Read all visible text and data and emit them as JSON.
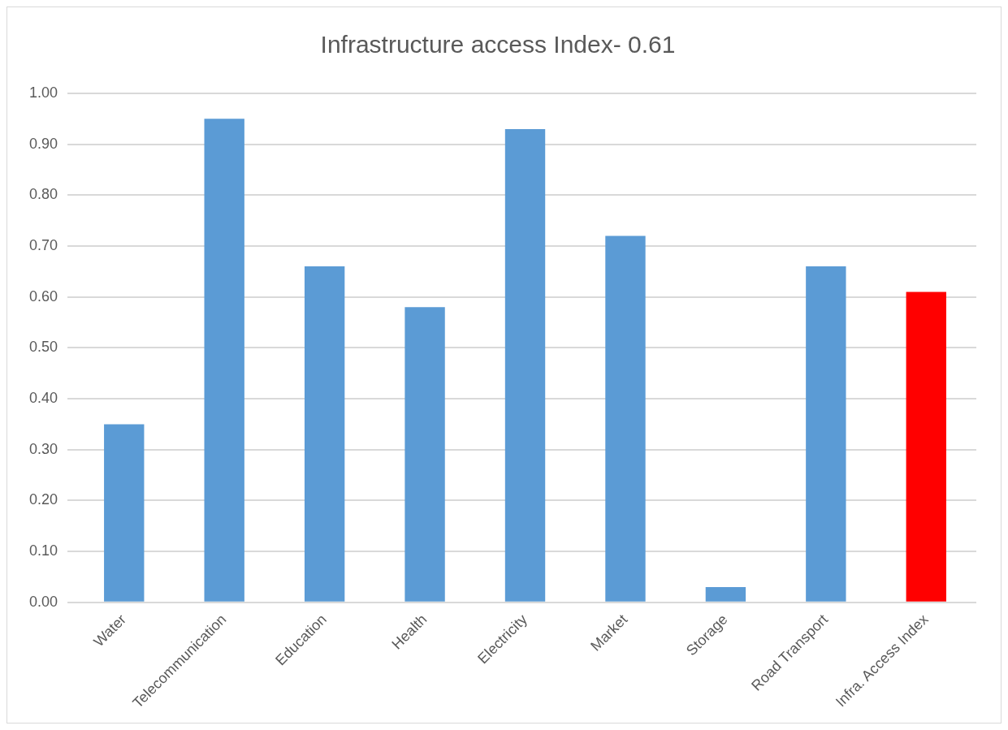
{
  "chart_data": {
    "type": "bar",
    "title": "Infrastructure access Index- 0.61",
    "categories": [
      "Water",
      "Telecommunication",
      "Education",
      "Health",
      "Electricity",
      "Market",
      "Storage",
      "Road Transport",
      "Infra. Access Index"
    ],
    "values": [
      0.35,
      0.95,
      0.66,
      0.58,
      0.93,
      0.72,
      0.03,
      0.66,
      0.61
    ],
    "colors": [
      "#5b9bd5",
      "#5b9bd5",
      "#5b9bd5",
      "#5b9bd5",
      "#5b9bd5",
      "#5b9bd5",
      "#5b9bd5",
      "#5b9bd5",
      "#ff0000"
    ],
    "ylim": [
      0,
      1
    ],
    "yticks": [
      {
        "value": 0,
        "label": "0.00"
      },
      {
        "value": 0.1,
        "label": "0.10"
      },
      {
        "value": 0.2,
        "label": "0.20"
      },
      {
        "value": 0.3,
        "label": "0.30"
      },
      {
        "value": 0.4,
        "label": "0.40"
      },
      {
        "value": 0.5,
        "label": "0.50"
      },
      {
        "value": 0.6,
        "label": "0.60"
      },
      {
        "value": 0.7,
        "label": "0.70"
      },
      {
        "value": 0.8,
        "label": "0.80"
      },
      {
        "value": 0.9,
        "label": "0.90"
      },
      {
        "value": 1,
        "label": "1.00"
      }
    ],
    "grid": "y",
    "legend": false
  }
}
